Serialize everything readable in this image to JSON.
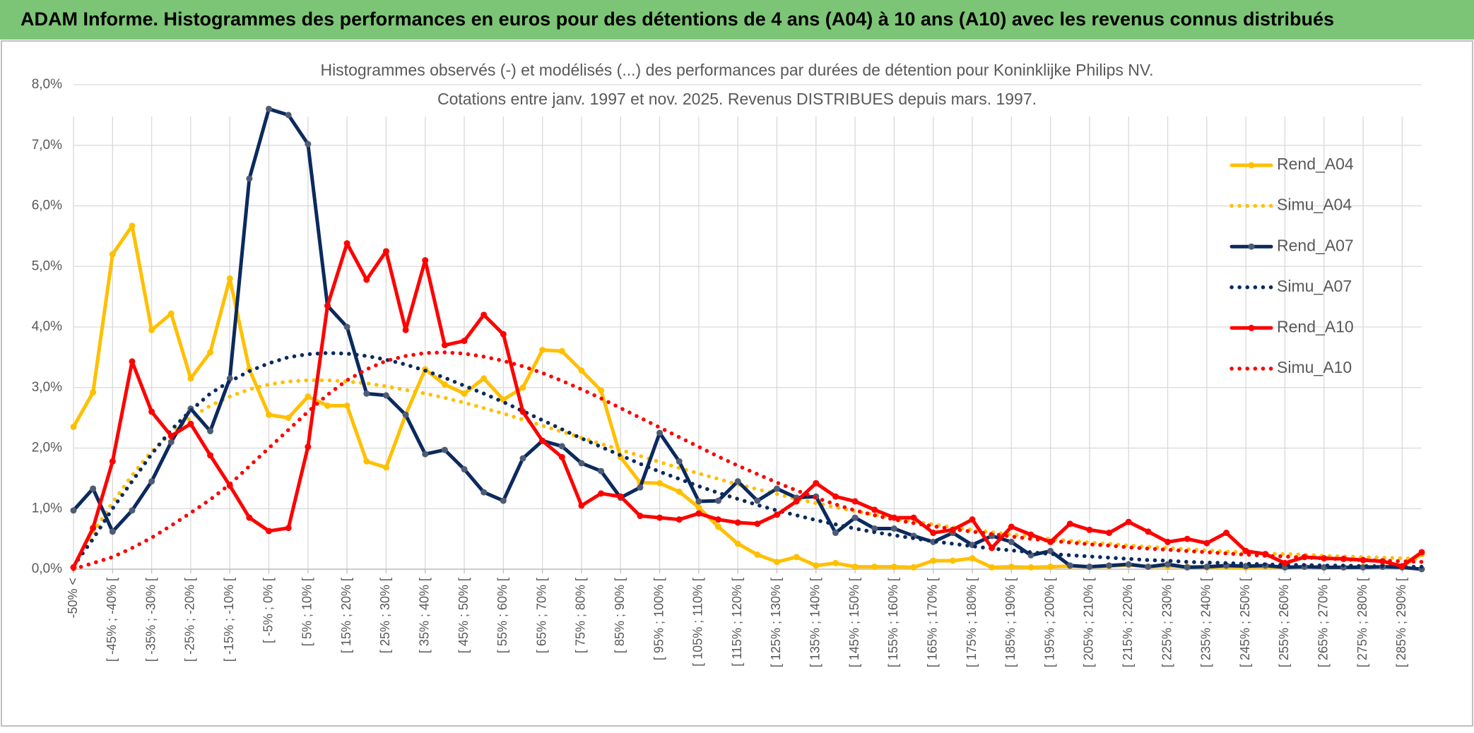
{
  "header": {
    "title": "ADAM Informe. Histogrammes des performances en euros pour des détentions de 4 ans (A04) à 10 ans (A10) avec les revenus connus distribués"
  },
  "chart_data": {
    "type": "line",
    "title": "Histogrammes observés (-) et modélisés (...) des performances par durées de détention pour Koninklijke Philips NV.",
    "subtitle": "Cotations entre janv. 1997 et nov. 2025. Revenus DISTRIBUES depuis mars. 1997.",
    "categories": [
      "-50% <",
      null,
      "[ -45% ; -40% [",
      null,
      "[ -35% ; -30% [",
      null,
      "[ -25% ; -20% [",
      null,
      "[ -15% ; -10% [",
      null,
      "[ -5% ; 0% [",
      null,
      "[ 5% ; 10% [",
      null,
      "[ 15% ; 20% [",
      null,
      "[ 25% ; 30% [",
      null,
      "[ 35% ; 40% [",
      null,
      "[ 45% ; 50% [",
      null,
      "[ 55% ; 60% [",
      null,
      "[ 65% ; 70% [",
      null,
      "[ 75% ; 80% [",
      null,
      "[ 85% ; 90% [",
      null,
      "[ 95% ; 100% [",
      null,
      "[ 105% ; 110% [",
      null,
      "[ 115% ; 120% [",
      null,
      "[ 125% ; 130% [",
      null,
      "[ 135% ; 140% [",
      null,
      "[ 145% ; 150% [",
      null,
      "[ 155% ; 160% [",
      null,
      "[ 165% ; 170% [",
      null,
      "[ 175% ; 180% [",
      null,
      "[ 185% ; 190% [",
      null,
      "[ 195% ; 200% [",
      null,
      "[ 205% ; 210% [",
      null,
      "[ 215% ; 220% [",
      null,
      "[ 225% ; 230% [",
      null,
      "[ 235% ; 240% [",
      null,
      "[ 245% ; 250% [",
      null,
      "[ 255% ; 260% [",
      null,
      "[ 265% ; 270% [",
      null,
      "[ 275% ; 280% [",
      null,
      "[ 285% ; 290% [",
      null
    ],
    "series": [
      {
        "name": "Rend_A04",
        "color": "#FFC000",
        "style": "solid",
        "marker_color": "#FFC000",
        "values": [
          2.35,
          2.92,
          5.2,
          5.67,
          3.95,
          4.22,
          3.15,
          3.58,
          4.8,
          3.3,
          2.55,
          2.5,
          2.85,
          2.7,
          2.7,
          1.78,
          1.68,
          2.55,
          3.3,
          3.05,
          2.9,
          3.15,
          2.8,
          3.0,
          3.62,
          3.6,
          3.28,
          2.95,
          1.85,
          1.43,
          1.42,
          1.28,
          1.02,
          0.7,
          0.42,
          0.24,
          0.12,
          0.2,
          0.06,
          0.1,
          0.04,
          0.04,
          0.04,
          0.03,
          0.14,
          0.14,
          0.18,
          0.03,
          0.04,
          0.03,
          0.04,
          0.05,
          0.04,
          0.05,
          0.07,
          0.04,
          0.05,
          0.04,
          0.03,
          0.04,
          0.03,
          0.04,
          0.03,
          0.04,
          0.03,
          0.03,
          0.04,
          0.04,
          0.05,
          0.25
        ]
      },
      {
        "name": "Simu_A04",
        "color": "#FFC000",
        "style": "dotted",
        "values": [
          0.05,
          0.6,
          1.1,
          1.55,
          1.95,
          2.25,
          2.5,
          2.7,
          2.85,
          2.97,
          3.05,
          3.1,
          3.12,
          3.12,
          3.1,
          3.07,
          3.02,
          2.96,
          2.9,
          2.83,
          2.75,
          2.66,
          2.57,
          2.47,
          2.37,
          2.27,
          2.17,
          2.07,
          1.97,
          1.87,
          1.77,
          1.67,
          1.58,
          1.49,
          1.4,
          1.32,
          1.24,
          1.16,
          1.09,
          1.02,
          0.96,
          0.9,
          0.84,
          0.79,
          0.74,
          0.69,
          0.65,
          0.61,
          0.57,
          0.54,
          0.5,
          0.47,
          0.44,
          0.42,
          0.39,
          0.37,
          0.35,
          0.33,
          0.31,
          0.29,
          0.28,
          0.26,
          0.25,
          0.24,
          0.22,
          0.21,
          0.2,
          0.19,
          0.18,
          0.17
        ]
      },
      {
        "name": "Rend_A07",
        "color": "#0B2A5E",
        "style": "solid",
        "marker_color": "#4F5C75",
        "values": [
          0.97,
          1.33,
          0.62,
          0.97,
          1.45,
          2.1,
          2.65,
          2.28,
          3.15,
          6.45,
          7.6,
          7.5,
          7.02,
          4.35,
          4.0,
          2.9,
          2.87,
          2.55,
          1.9,
          1.97,
          1.65,
          1.27,
          1.13,
          1.83,
          2.12,
          2.03,
          1.75,
          1.62,
          1.18,
          1.35,
          2.25,
          1.78,
          1.12,
          1.13,
          1.45,
          1.13,
          1.33,
          1.18,
          1.2,
          0.6,
          0.85,
          0.67,
          0.67,
          0.55,
          0.45,
          0.6,
          0.4,
          0.55,
          0.45,
          0.23,
          0.3,
          0.06,
          0.04,
          0.06,
          0.08,
          0.04,
          0.08,
          0.03,
          0.04,
          0.06,
          0.05,
          0.06,
          0.03,
          0.04,
          0.03,
          0.03,
          0.03,
          0.04,
          0.03,
          0.0
        ]
      },
      {
        "name": "Simu_A07",
        "color": "#0B2A5E",
        "style": "dotted",
        "values": [
          0.05,
          0.5,
          1.0,
          1.45,
          1.9,
          2.3,
          2.62,
          2.9,
          3.1,
          3.27,
          3.4,
          3.5,
          3.55,
          3.57,
          3.56,
          3.52,
          3.46,
          3.38,
          3.28,
          3.16,
          3.03,
          2.9,
          2.76,
          2.61,
          2.46,
          2.31,
          2.16,
          2.02,
          1.88,
          1.74,
          1.61,
          1.49,
          1.37,
          1.26,
          1.16,
          1.06,
          0.97,
          0.89,
          0.81,
          0.74,
          0.67,
          0.61,
          0.56,
          0.51,
          0.46,
          0.42,
          0.38,
          0.34,
          0.31,
          0.28,
          0.25,
          0.23,
          0.21,
          0.19,
          0.17,
          0.15,
          0.14,
          0.12,
          0.11,
          0.1,
          0.09,
          0.08,
          0.07,
          0.07,
          0.06,
          0.06,
          0.05,
          0.05,
          0.04,
          0.04
        ]
      },
      {
        "name": "Rend_A10",
        "color": "#FF0000",
        "style": "solid",
        "marker_color": "#FF0000",
        "values": [
          0.03,
          0.68,
          1.78,
          3.43,
          2.6,
          2.2,
          2.4,
          1.88,
          1.38,
          0.85,
          0.63,
          0.68,
          2.02,
          4.35,
          5.38,
          4.78,
          5.25,
          3.95,
          5.1,
          3.7,
          3.77,
          4.2,
          3.88,
          2.6,
          2.12,
          1.85,
          1.05,
          1.25,
          1.2,
          0.88,
          0.85,
          0.82,
          0.92,
          0.82,
          0.77,
          0.75,
          0.9,
          1.12,
          1.42,
          1.2,
          1.12,
          0.98,
          0.85,
          0.85,
          0.6,
          0.65,
          0.82,
          0.35,
          0.7,
          0.57,
          0.45,
          0.75,
          0.65,
          0.6,
          0.78,
          0.62,
          0.45,
          0.5,
          0.43,
          0.6,
          0.3,
          0.25,
          0.1,
          0.2,
          0.18,
          0.17,
          0.15,
          0.13,
          0.05,
          0.28
        ]
      },
      {
        "name": "Simu_A10",
        "color": "#FF0000",
        "style": "dotted",
        "values": [
          0.0,
          0.1,
          0.2,
          0.35,
          0.52,
          0.72,
          0.93,
          1.15,
          1.4,
          1.7,
          2.0,
          2.3,
          2.6,
          2.88,
          3.12,
          3.3,
          3.44,
          3.52,
          3.57,
          3.58,
          3.56,
          3.51,
          3.44,
          3.35,
          3.24,
          3.11,
          2.97,
          2.82,
          2.66,
          2.5,
          2.34,
          2.18,
          2.02,
          1.86,
          1.71,
          1.57,
          1.43,
          1.3,
          1.18,
          1.07,
          0.97,
          0.89,
          0.82,
          0.76,
          0.71,
          0.66,
          0.62,
          0.58,
          0.54,
          0.5,
          0.47,
          0.44,
          0.41,
          0.39,
          0.36,
          0.34,
          0.32,
          0.3,
          0.28,
          0.26,
          0.24,
          0.22,
          0.21,
          0.19,
          0.18,
          0.16,
          0.15,
          0.14,
          0.13,
          0.12
        ]
      }
    ],
    "ylim": [
      0,
      8
    ],
    "yticks": [
      {
        "value": 0,
        "label": "0,0%"
      },
      {
        "value": 1,
        "label": "1,0%"
      },
      {
        "value": 2,
        "label": "2,0%"
      },
      {
        "value": 3,
        "label": "3,0%"
      },
      {
        "value": 4,
        "label": "4,0%"
      },
      {
        "value": 5,
        "label": "5,0%"
      },
      {
        "value": 6,
        "label": "6,0%"
      },
      {
        "value": 7,
        "label": "7,0%"
      },
      {
        "value": 8,
        "label": "8,0%"
      }
    ],
    "grid": true,
    "legend": "right"
  }
}
